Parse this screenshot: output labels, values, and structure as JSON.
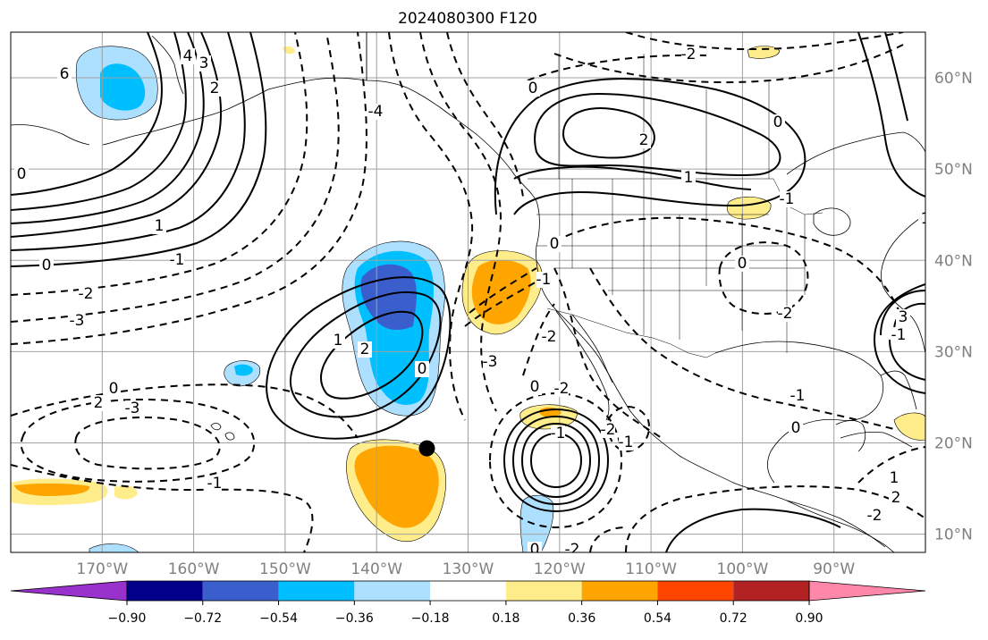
{
  "title": "2024080300 F120",
  "map": {
    "lon_range": [
      -180,
      -80
    ],
    "lat_range": [
      8,
      65
    ],
    "lon_ticks": [
      "170°W",
      "160°W",
      "150°W",
      "140°W",
      "130°W",
      "120°W",
      "110°W",
      "100°W",
      "90°W"
    ],
    "lat_ticks": [
      "60°N",
      "50°N",
      "40°N",
      "30°N",
      "20°N",
      "10°N"
    ],
    "gridlines": true,
    "marker": {
      "lon": -134.5,
      "lat": 19.4,
      "label": ""
    }
  },
  "colorbar": {
    "colors": [
      "#9932CC",
      "#00008B",
      "#3A5FCD",
      "#00BFFF",
      "#ADDFFF",
      "#FFFFFF",
      "#FFEC8B",
      "#FFA500",
      "#FF4500",
      "#B22222",
      "#FF88AA"
    ],
    "tick_labels": [
      "−0.90",
      "−0.72",
      "−0.54",
      "−0.36",
      "−0.18",
      "0.18",
      "0.36",
      "0.54",
      "0.72",
      "0.90"
    ],
    "placement": "bottom",
    "extend": "both"
  },
  "contour_labels": [
    "6",
    "4",
    "3",
    "2",
    "1",
    "0",
    "-1",
    "-2",
    "-3",
    "-4",
    "0",
    "2",
    "1",
    "0",
    "-1",
    "-2",
    "0",
    "-1",
    "-2",
    "1",
    "2",
    "0",
    "-3",
    "-2",
    "0",
    "-1",
    "0",
    "2",
    "-3",
    "-1",
    "0",
    "-1",
    "0",
    "-1",
    "1",
    "2",
    "-2",
    "0",
    "-2",
    "-1",
    "-2",
    "3",
    "1",
    "-2",
    "0"
  ]
}
